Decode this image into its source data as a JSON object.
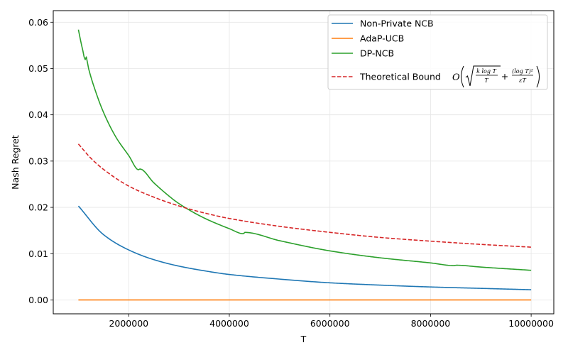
{
  "chart_data": {
    "type": "line",
    "xlabel": "T",
    "ylabel": "Nash Regret",
    "xlim": [
      500000,
      10450000
    ],
    "ylim": [
      -0.003,
      0.0625
    ],
    "xticks": [
      2000000,
      4000000,
      6000000,
      8000000,
      10000000
    ],
    "xtick_labels": [
      "2000000",
      "4000000",
      "6000000",
      "8000000",
      "10000000"
    ],
    "yticks": [
      0.0,
      0.01,
      0.02,
      0.03,
      0.04,
      0.05,
      0.06
    ],
    "ytick_labels": [
      "0.00",
      "0.01",
      "0.02",
      "0.03",
      "0.04",
      "0.05",
      "0.06"
    ],
    "grid": true,
    "legend_position": "top-right",
    "series": [
      {
        "name": "Non-Private NCB",
        "color": "#1f77b4",
        "style": "solid",
        "x": [
          1000000,
          1500000,
          2000000,
          2500000,
          3000000,
          3500000,
          4000000,
          5000000,
          6000000,
          7000000,
          8000000,
          9000000,
          10000000
        ],
        "y": [
          0.0203,
          0.0141,
          0.0108,
          0.0087,
          0.0073,
          0.0063,
          0.0055,
          0.0045,
          0.0037,
          0.0032,
          0.0028,
          0.0025,
          0.0022
        ]
      },
      {
        "name": "AdaP-UCB",
        "color": "#ff7f0e",
        "style": "solid",
        "x": [
          1000000,
          10000000
        ],
        "y": [
          0.0,
          0.0
        ]
      },
      {
        "name": "DP-NCB",
        "color": "#2ca02c",
        "style": "solid",
        "x": [
          1000000,
          1050000,
          1100000,
          1130000,
          1150000,
          1200000,
          1300000,
          1500000,
          1750000,
          2000000,
          2200000,
          2220000,
          2500000,
          2750000,
          3000000,
          3500000,
          4000000,
          4280000,
          4300000,
          5000000,
          6000000,
          7000000,
          8000000,
          8480000,
          8500000,
          9000000,
          10000000
        ],
        "y": [
          0.0584,
          0.0557,
          0.0533,
          0.0518,
          0.0526,
          0.0501,
          0.0464,
          0.0405,
          0.0351,
          0.0312,
          0.0281,
          0.0283,
          0.0253,
          0.0229,
          0.0208,
          0.0177,
          0.0154,
          0.0143,
          0.0146,
          0.0128,
          0.0106,
          0.0091,
          0.008,
          0.0074,
          0.0075,
          0.0071,
          0.0064
        ]
      },
      {
        "name": "Theoretical Bound",
        "color": "#d62728",
        "style": "dashed",
        "x": [
          1000000,
          1250000,
          1500000,
          2000000,
          2500000,
          3000000,
          3500000,
          4000000,
          5000000,
          6000000,
          7000000,
          8000000,
          9000000,
          10000000
        ],
        "y": [
          0.0337,
          0.0306,
          0.0282,
          0.0246,
          0.0222,
          0.0203,
          0.0188,
          0.0176,
          0.0159,
          0.0146,
          0.0135,
          0.0127,
          0.012,
          0.0114
        ]
      }
    ],
    "legend": {
      "entries": [
        "Non-Private NCB",
        "AdaP-UCB",
        "DP-NCB",
        "Theoretical Bound"
      ],
      "bound_formula": {
        "big_o": "O",
        "num1": "k log T",
        "den1": "T",
        "plus": "+",
        "num2": "(log T)²",
        "den2": "εT"
      }
    }
  }
}
